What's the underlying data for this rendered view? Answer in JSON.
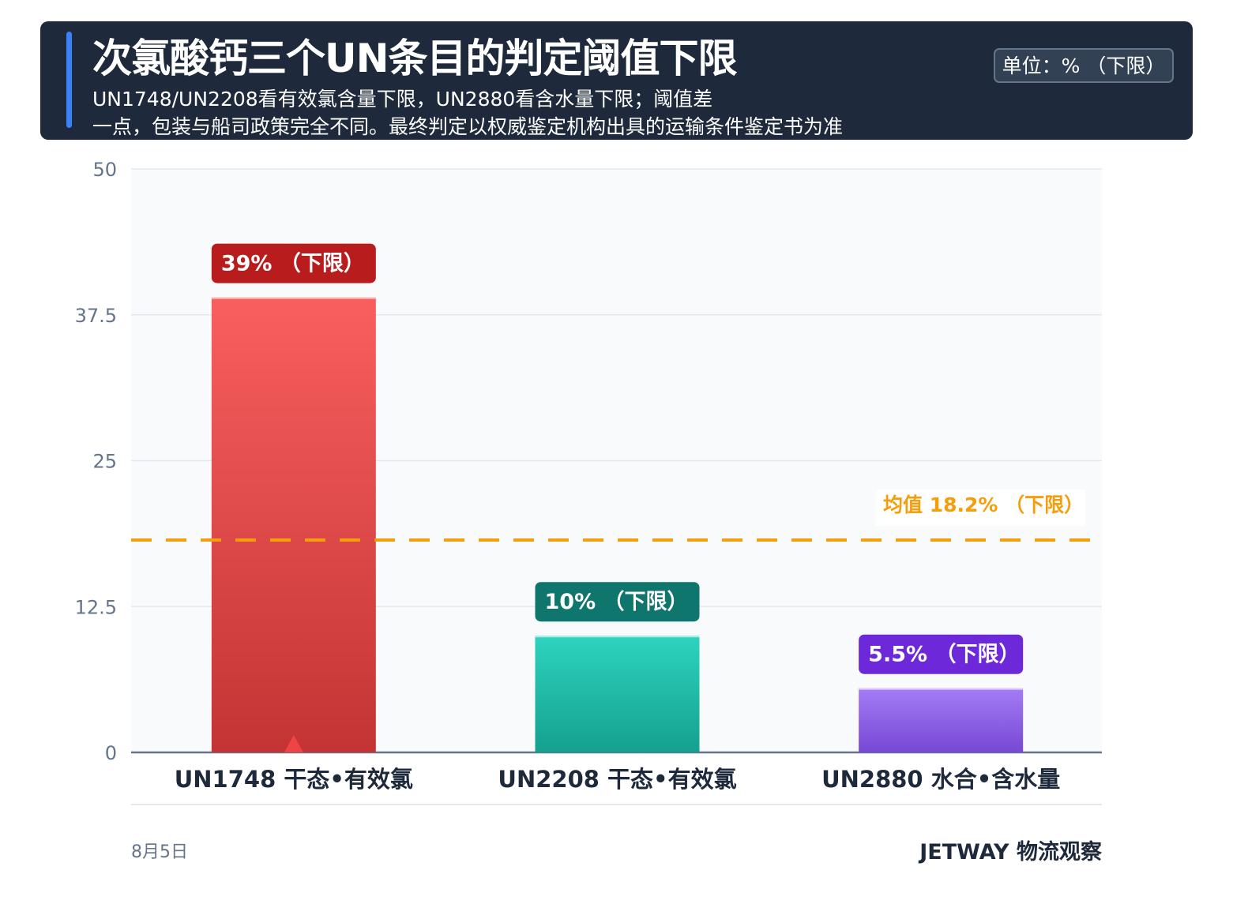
{
  "header": {
    "title": "次氯酸钙三个UN条目的判定阈值下限",
    "subtitle_line1": "UN1748/UN2208看有效氯含量下限，UN2880看含水量下限；阈值差",
    "subtitle_line2": "一点，包装与船司政策完全不同。最终判定以权威鉴定机构出具的运输条件鉴定书为准",
    "unit_badge": "单位：% （下限）"
  },
  "footer": {
    "date": "8月5日",
    "brand": "JETWAY 物流观察"
  },
  "chart_data": {
    "type": "bar",
    "categories": [
      "UN1748 干态•有效氯",
      "UN2208 干态•有效氯",
      "UN2880 水合•含水量"
    ],
    "values": [
      39,
      10,
      5.5
    ],
    "data_labels": [
      "39% （下限）",
      "10% （下限）",
      "5.5% （下限）"
    ],
    "ylim": [
      0,
      50
    ],
    "yticks": [
      0,
      12.5,
      25,
      37.5,
      50
    ],
    "ytick_labels": [
      "0",
      "12.5",
      "25",
      "37.5",
      "50"
    ],
    "grid": true,
    "colors": [
      {
        "top": "#f95f5f",
        "bottom": "#c43434",
        "label_bg": "#b91c1c"
      },
      {
        "top": "#2dd4bf",
        "bottom": "#14a08e",
        "label_bg": "#0f766e"
      },
      {
        "top": "#a47cf6",
        "bottom": "#7748d4",
        "label_bg": "#6d28d9"
      }
    ],
    "reference_line": {
      "value": 18.2,
      "label": "均值 18.2% （下限）",
      "color": "#f59e0b"
    },
    "highlight_marker": {
      "category_index": 0,
      "color": "#ef4444"
    }
  }
}
